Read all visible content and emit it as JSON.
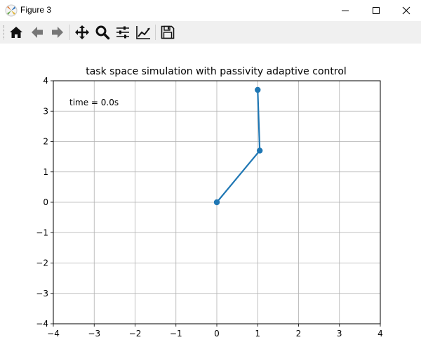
{
  "window": {
    "title": "Figure 3",
    "minimize_icon": "minimize-icon",
    "maximize_icon": "maximize-icon",
    "close_icon": "close-icon"
  },
  "toolbar": {
    "tools": [
      {
        "name": "home-button",
        "icon": "home-icon"
      },
      {
        "name": "back-button",
        "icon": "arrow-left-icon"
      },
      {
        "name": "forward-button",
        "icon": "arrow-right-icon"
      },
      {
        "name": "pan-button",
        "icon": "move-arrows-icon"
      },
      {
        "name": "zoom-button",
        "icon": "magnifier-icon"
      },
      {
        "name": "subplots-button",
        "icon": "sliders-icon"
      },
      {
        "name": "axes-edit-button",
        "icon": "line-chart-icon"
      },
      {
        "name": "save-button",
        "icon": "floppy-disk-icon"
      }
    ]
  },
  "chart_data": {
    "type": "line",
    "title": "task space simulation with passivity adaptive control",
    "annotation": "time = 0.0s",
    "xlabel": "",
    "ylabel": "",
    "xlim": [
      -4,
      4
    ],
    "ylim": [
      -4,
      4
    ],
    "xticks": [
      -4,
      -3,
      -2,
      -1,
      0,
      1,
      2,
      3,
      4
    ],
    "yticks": [
      -4,
      -3,
      -2,
      -1,
      0,
      1,
      2,
      3,
      4
    ],
    "xtick_labels": [
      "−4",
      "−3",
      "−2",
      "−1",
      "0",
      "1",
      "2",
      "3",
      "4"
    ],
    "ytick_labels": [
      "−4",
      "−3",
      "−2",
      "−1",
      "0",
      "1",
      "2",
      "3",
      "4"
    ],
    "grid": true,
    "series": [
      {
        "points": [
          {
            "x": 0.0,
            "y": 0.0
          },
          {
            "x": 1.05,
            "y": 1.7
          },
          {
            "x": 1.0,
            "y": 3.7
          }
        ],
        "color": "#1f77b4",
        "marker": "circle"
      }
    ]
  }
}
